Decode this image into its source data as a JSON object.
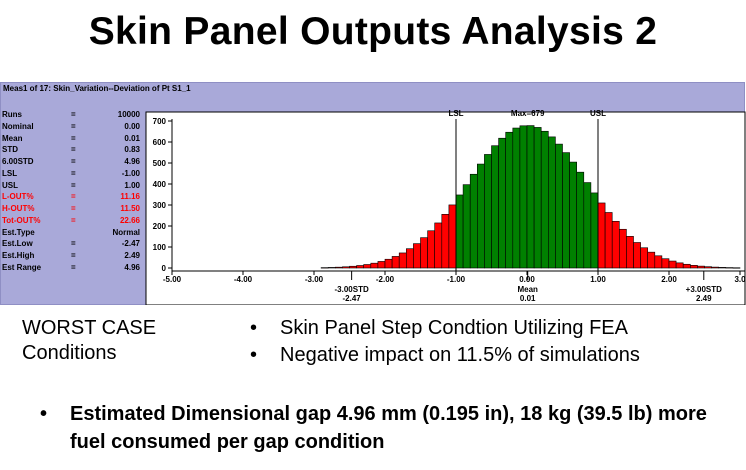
{
  "title": "Skin Panel Outputs Analysis 2",
  "panel": {
    "header": "Meas1 of 17: Skin_Variation--Deviation of Pt S1_1",
    "stats": [
      {
        "label": "Runs",
        "eq": "=",
        "value": "10000",
        "red": false
      },
      {
        "label": "Nominal",
        "eq": "=",
        "value": "0.00",
        "red": false
      },
      {
        "label": "Mean",
        "eq": "=",
        "value": "0.01",
        "red": false
      },
      {
        "label": "STD",
        "eq": "=",
        "value": "0.83",
        "red": false
      },
      {
        "label": "6.00STD",
        "eq": "=",
        "value": "4.96",
        "red": false
      },
      {
        "label": "LSL",
        "eq": "=",
        "value": "-1.00",
        "red": false
      },
      {
        "label": "USL",
        "eq": "=",
        "value": "1.00",
        "red": false
      },
      {
        "label": "L-OUT%",
        "eq": "=",
        "value": "11.16",
        "red": true
      },
      {
        "label": "H-OUT%",
        "eq": "=",
        "value": "11.50",
        "red": true
      },
      {
        "label": "Tot-OUT%",
        "eq": "=",
        "value": "22.66",
        "red": true
      },
      {
        "label": "Est.Type",
        "eq": "",
        "value": "Normal",
        "red": false
      },
      {
        "label": "Est.Low",
        "eq": "=",
        "value": "-2.47",
        "red": false
      },
      {
        "label": "Est.High",
        "eq": "=",
        "value": "2.49",
        "red": false
      },
      {
        "label": "Est Range",
        "eq": "=",
        "value": "4.96",
        "red": false
      }
    ]
  },
  "chart_data": {
    "type": "bar",
    "y_ticks": [
      "0",
      "100",
      "200",
      "300",
      "400",
      "500",
      "600",
      "700"
    ],
    "ylim": [
      0,
      700
    ],
    "x_ticks": [
      "-5.00",
      "-4.00",
      "-3.00",
      "-2.00",
      "-1.00",
      "0.00",
      "1.00",
      "2.00",
      "3.0"
    ],
    "xlim": [
      -5.0,
      3.0
    ],
    "lsl": -1.0,
    "usl": 1.0,
    "lsl_label": "LSL",
    "usl_label": "USL",
    "max_label": "Max=679",
    "annotations": [
      {
        "x": -2.47,
        "line1": "-3.00STD",
        "line2": "-2.47"
      },
      {
        "x": 0.01,
        "line1": "Mean",
        "line2": "0.01"
      },
      {
        "x": 2.49,
        "line1": "+3.00STD",
        "line2": "2.49"
      }
    ],
    "mean": 0.01,
    "std": 0.83,
    "max": 679,
    "bin_width": 0.1,
    "bin_start": -2.9,
    "bin_end": 3.0,
    "in_color": "#008000",
    "out_color": "#ff0000"
  },
  "left_text": {
    "line1": "WORST CASE",
    "line2": "Conditions"
  },
  "bullets": [
    "Skin Panel Step Condtion Utilizing FEA",
    "Negative impact on 11.5% of simulations"
  ],
  "bullet_glyph": "•",
  "bottom_bullet": "Estimated Dimensional gap 4.96 mm (0.195 in), 18 kg (39.5 lb) more fuel consumed per gap condition"
}
